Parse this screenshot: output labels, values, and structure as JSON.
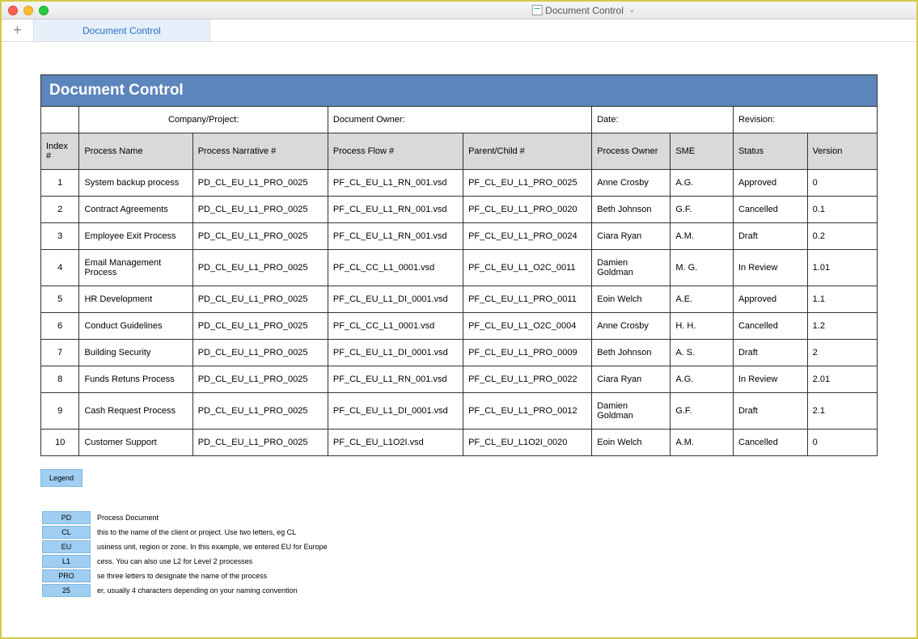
{
  "window": {
    "title": "Document Control"
  },
  "tabs": {
    "new_tab": "+",
    "active": "Document Control"
  },
  "page_title": "Document Control",
  "meta_labels": {
    "company": "Company/Project:",
    "doc_owner": "Document Owner:",
    "date": "Date:",
    "revision": "Revision:"
  },
  "columns": {
    "index": "Index #",
    "process_name": "Process Name",
    "narrative": "Process Narrative #",
    "flow": "Process Flow #",
    "parent": "Parent/Child #",
    "owner": "Process Owner",
    "sme": "SME",
    "status": "Status",
    "version": "Version"
  },
  "rows": [
    {
      "idx": "1",
      "name": "System backup process",
      "narr": "PD_CL_EU_L1_PRO_0025",
      "flow": "PF_CL_EU_L1_RN_001.vsd",
      "parent": "PF_CL_EU_L1_PRO_0025",
      "owner": "Anne Crosby",
      "sme": "A.G.",
      "status": "Approved",
      "ver": "0"
    },
    {
      "idx": "2",
      "name": "Contract Agreements",
      "narr": "PD_CL_EU_L1_PRO_0025",
      "flow": "PF_CL_EU_L1_RN_001.vsd",
      "parent": "PF_CL_EU_L1_PRO_0020",
      "owner": "Beth Johnson",
      "sme": "G.F.",
      "status": "Cancelled",
      "ver": "0.1"
    },
    {
      "idx": "3",
      "name": "Employee Exit Process",
      "narr": "PD_CL_EU_L1_PRO_0025",
      "flow": "PF_CL_EU_L1_RN_001.vsd",
      "parent": "PF_CL_EU_L1_PRO_0024",
      "owner": "Ciara Ryan",
      "sme": "A.M.",
      "status": "Draft",
      "ver": "0.2"
    },
    {
      "idx": "4",
      "name": "Email Management Process",
      "narr": "PD_CL_EU_L1_PRO_0025",
      "flow": "PF_CL_CC_L1_0001.vsd",
      "parent": "PF_CL_EU_L1_O2C_0011",
      "owner": "Damien Goldman",
      "sme": "M. G.",
      "status": "In Review",
      "ver": "1.01"
    },
    {
      "idx": "5",
      "name": "HR Development",
      "narr": "PD_CL_EU_L1_PRO_0025",
      "flow": "PF_CL_EU_L1_DI_0001.vsd",
      "parent": "PF_CL_EU_L1_PRO_0011",
      "owner": "Eoin Welch",
      "sme": "A.E.",
      "status": "Approved",
      "ver": "1.1"
    },
    {
      "idx": "6",
      "name": "Conduct Guidelines",
      "narr": "PD_CL_EU_L1_PRO_0025",
      "flow": "PF_CL_CC_L1_0001.vsd",
      "parent": "PF_CL_EU_L1_O2C_0004",
      "owner": "Anne Crosby",
      "sme": "H. H.",
      "status": "Cancelled",
      "ver": "1.2"
    },
    {
      "idx": "7",
      "name": "Building Security",
      "narr": "PD_CL_EU_L1_PRO_0025",
      "flow": "PF_CL_EU_L1_DI_0001.vsd",
      "parent": "PF_CL_EU_L1_PRO_0009",
      "owner": "Beth Johnson",
      "sme": "A. S.",
      "status": "Draft",
      "ver": "2"
    },
    {
      "idx": "8",
      "name": "Funds Retuns Process",
      "narr": "PD_CL_EU_L1_PRO_0025",
      "flow": "PF_CL_EU_L1_RN_001.vsd",
      "parent": "PF_CL_EU_L1_PRO_0022",
      "owner": "Ciara Ryan",
      "sme": "A.G.",
      "status": "In Review",
      "ver": "2.01"
    },
    {
      "idx": "9",
      "name": "Cash Request Process",
      "narr": "PD_CL_EU_L1_PRO_0025",
      "flow": "PF_CL_EU_L1_DI_0001.vsd",
      "parent": "PF_CL_EU_L1_PRO_0012",
      "owner": "Damien Goldman",
      "sme": "G.F.",
      "status": "Draft",
      "ver": "2.1"
    },
    {
      "idx": "10",
      "name": "Customer Support",
      "narr": "PD_CL_EU_L1_PRO_0025",
      "flow": "PF_CL_EU_L1O2I.vsd",
      "parent": "PF_CL_EU_L1O2I_0020",
      "owner": "Eoin Welch",
      "sme": "A.M.",
      "status": "Cancelled",
      "ver": "0"
    }
  ],
  "legend": {
    "button": "Legend",
    "items": [
      {
        "code": "PD",
        "desc": "Process Document"
      },
      {
        "code": "CL",
        "desc": "this to the name of the client or project. Use two letters, eg CL"
      },
      {
        "code": "EU",
        "desc": "usiness unit, region or zone. In this example, we entered EU for Europe"
      },
      {
        "code": "L1",
        "desc": "cess. You can also use L2 for Level 2 processes"
      },
      {
        "code": "PRO",
        "desc": "se three letters to designate the name of the process"
      },
      {
        "code": "25",
        "desc": "er, usually 4 characters depending on your naming convention"
      }
    ]
  }
}
